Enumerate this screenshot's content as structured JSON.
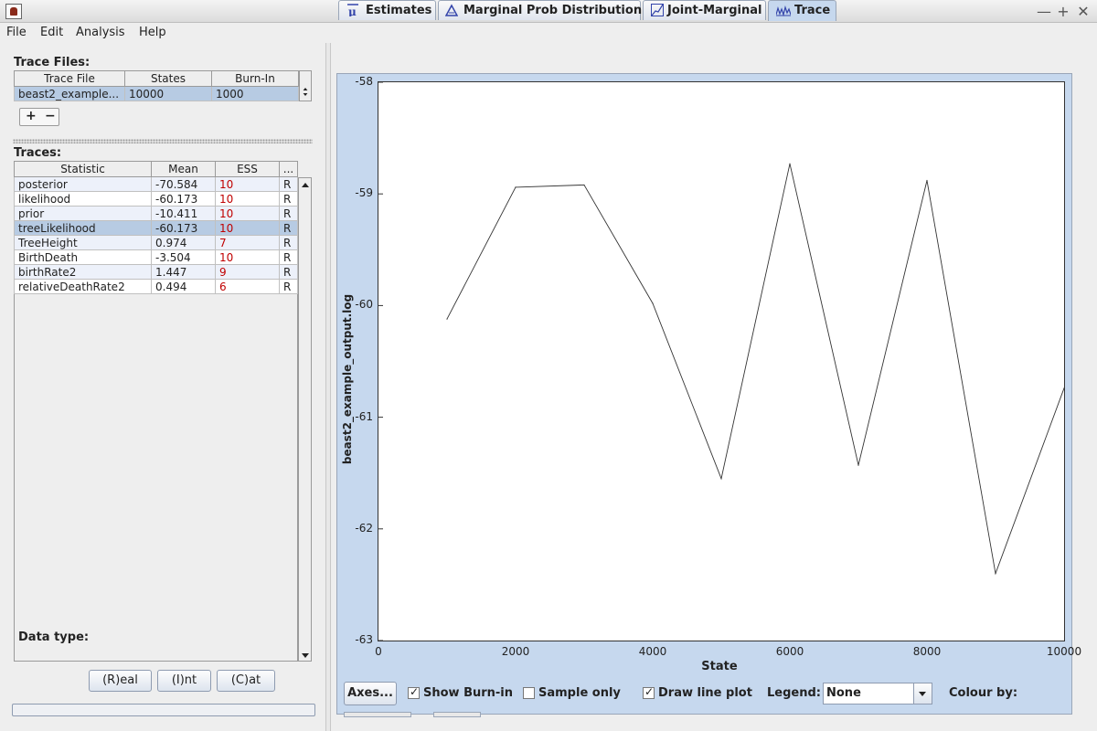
{
  "window": {
    "title": "Tracer",
    "controls": [
      "—",
      "+",
      "✕"
    ]
  },
  "menu": [
    {
      "label": "File"
    },
    {
      "label": "Edit"
    },
    {
      "label": "Analysis"
    },
    {
      "label": "Help"
    }
  ],
  "trace_files": {
    "label": "Trace Files:",
    "columns": [
      "Trace File",
      "States",
      "Burn-In"
    ],
    "rows": [
      {
        "file": "beast2_example...",
        "states": "10000",
        "burnin": "1000"
      }
    ],
    "add": "+",
    "remove": "−"
  },
  "traces": {
    "label": "Traces:",
    "columns": [
      "Statistic",
      "Mean",
      "ESS",
      "..."
    ],
    "rows": [
      {
        "stat": "posterior",
        "mean": "-70.584",
        "ess": "10",
        "type": "R"
      },
      {
        "stat": "likelihood",
        "mean": "-60.173",
        "ess": "10",
        "type": "R"
      },
      {
        "stat": "prior",
        "mean": "-10.411",
        "ess": "10",
        "type": "R"
      },
      {
        "stat": "treeLikelihood",
        "mean": "-60.173",
        "ess": "10",
        "type": "R"
      },
      {
        "stat": "TreeHeight",
        "mean": "0.974",
        "ess": "7",
        "type": "R"
      },
      {
        "stat": "BirthDeath",
        "mean": "-3.504",
        "ess": "10",
        "type": "R"
      },
      {
        "stat": "birthRate2",
        "mean": "1.447",
        "ess": "9",
        "type": "R"
      },
      {
        "stat": "relativeDeathRate2",
        "mean": "0.494",
        "ess": "6",
        "type": "R"
      }
    ],
    "selected_index": 3
  },
  "data_type": {
    "label": "Data type:",
    "real": "(R)eal",
    "int": "(I)nt",
    "cat": "(C)at"
  },
  "tabs": [
    {
      "label": "Estimates",
      "icon": "mu-icon"
    },
    {
      "label": "Marginal Prob Distribution",
      "icon": "triangle-icon"
    },
    {
      "label": "Joint-Marginal",
      "icon": "joint-icon"
    },
    {
      "label": "Trace",
      "icon": "trace-icon"
    }
  ],
  "active_tab": "Trace",
  "controls": {
    "axes": "Axes...",
    "show_burnin": {
      "label": "Show Burn-in",
      "checked": true
    },
    "sample_only": {
      "label": "Sample only",
      "checked": false
    },
    "draw_line": {
      "label": "Draw line plot",
      "checked": true
    },
    "legend_label": "Legend:",
    "legend_value": "None",
    "colour_by": "Colour by:"
  },
  "chart_data": {
    "type": "line",
    "title": "",
    "xlabel": "State",
    "ylabel": "beast2_example_output.log",
    "xlim": [
      0,
      10000
    ],
    "ylim": [
      -63,
      -58
    ],
    "xticks": [
      "0",
      "2000",
      "4000",
      "6000",
      "8000",
      "10000"
    ],
    "yticks": [
      "-58",
      "-59",
      "-60",
      "-61",
      "-62",
      "-63"
    ],
    "grid": false,
    "series": [
      {
        "x": [
          1000,
          2000,
          3000,
          4000,
          5000,
          6000,
          7000,
          8000,
          9000,
          10000
        ],
        "y": [
          -60.12,
          -58.94,
          -58.92,
          -59.98,
          -61.55,
          -58.73,
          -61.43,
          -58.88,
          -62.4,
          -60.74
        ]
      }
    ]
  }
}
